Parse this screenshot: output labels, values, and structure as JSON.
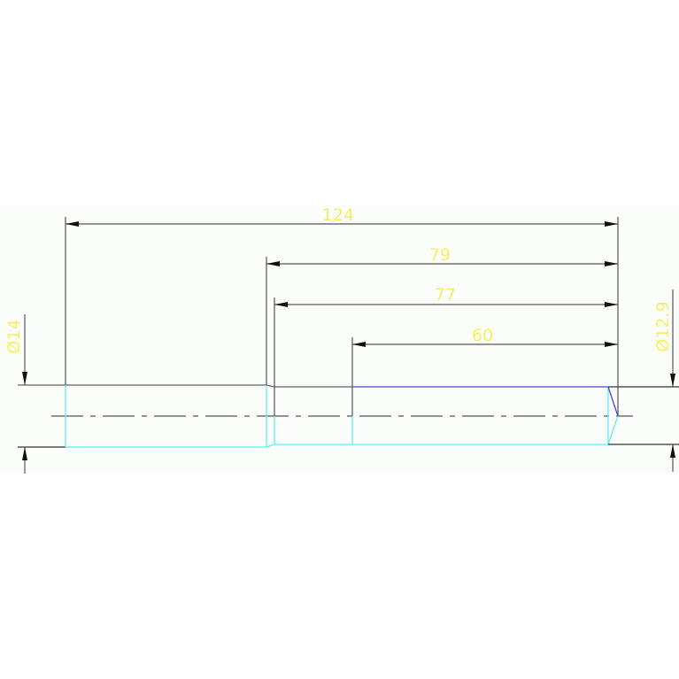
{
  "drawing": {
    "colors": {
      "background_band": "#fbfdfb",
      "dimension_line": "#555555",
      "dimension_text": "#f4f066",
      "visible_edge_cyan": "#5ff0f0",
      "visible_edge_blue": "#4a46d8",
      "center_line": "#555555"
    },
    "dimensions": {
      "overall_length": "124",
      "length_79": "79",
      "length_77": "77",
      "length_60": "60",
      "diameter_left": "Ø14",
      "diameter_right": "Ø12.9"
    }
  }
}
